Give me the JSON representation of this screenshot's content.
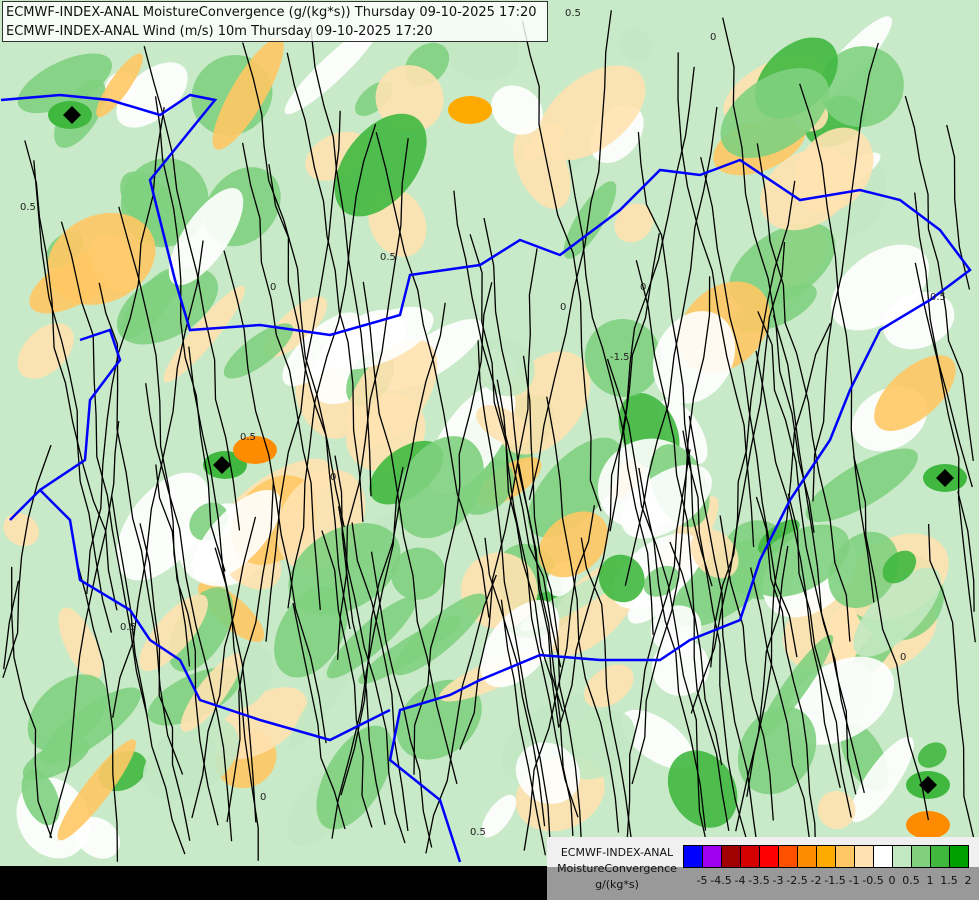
{
  "header": {
    "line1": "ECMWF-INDEX-ANAL MoistureConvergence (g/(kg*s)) Thursday 09-10-2025 17:20",
    "line2": "ECMWF-INDEX-ANAL Wind (m/s) 10m Thursday 09-10-2025 17:20"
  },
  "legend": {
    "model": "ECMWF-INDEX-ANAL",
    "parameter": "MoistureConvergence",
    "unit": "g/(kg*s)",
    "colors": [
      "#0000ff",
      "#a000f0",
      "#a00000",
      "#d20000",
      "#ff0000",
      "#ff5000",
      "#ff8c00",
      "#ffaa00",
      "#ffc864",
      "#ffe2b0",
      "#ffffff",
      "#c2e8c2",
      "#80d080",
      "#40b840",
      "#00a000"
    ],
    "ticks": [
      "-5",
      "-4.5",
      "-4",
      "-3.5",
      "-3",
      "-2.5",
      "-2",
      "-1.5",
      "-1",
      "-0.5",
      "0",
      "0.5",
      "1",
      "1.5",
      "2"
    ]
  },
  "map": {
    "border_color": "#0000ff",
    "streamline_color": "#000000",
    "contour_labels": [
      "0.5",
      "0",
      "0.5",
      "0",
      "-1.5",
      "0.5",
      "0",
      "0.5",
      "0",
      "0.5",
      "0",
      "0.5",
      "0",
      "0.5",
      "0"
    ]
  }
}
